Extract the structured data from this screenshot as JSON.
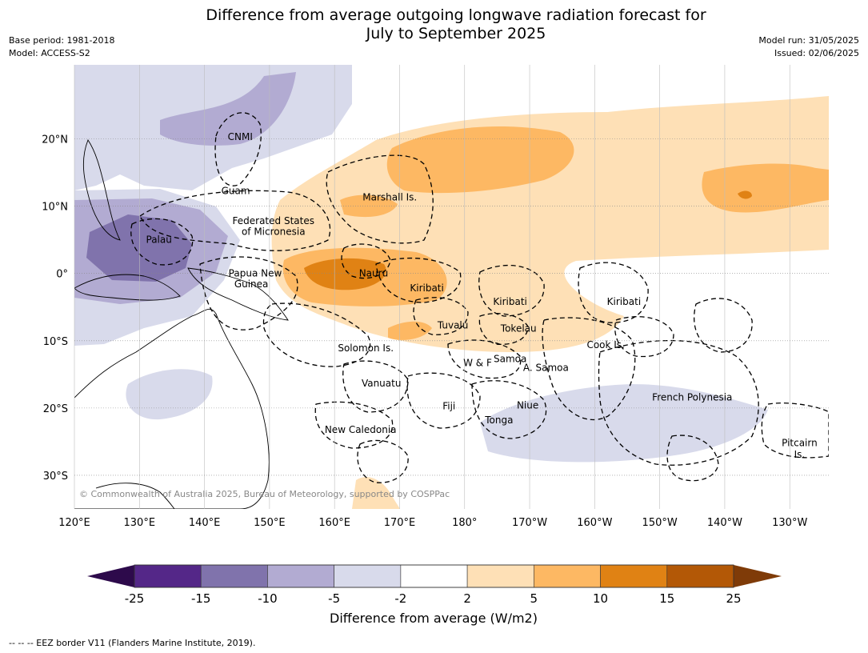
{
  "title": {
    "line1": "Difference from average outgoing longwave radiation forecast for",
    "line2": "July to September 2025"
  },
  "meta": {
    "base_period": "Base period: 1981-2018",
    "model": "Model: ACCESS-S2",
    "model_run": "Model run: 31/05/2025",
    "issued": "Issued: 02/06/2025"
  },
  "map": {
    "lon_range": [
      120,
      236
    ],
    "lat_range": [
      -35,
      31
    ],
    "lon_ticks": [
      {
        "value": 120,
        "label": "120°E"
      },
      {
        "value": 130,
        "label": "130°E"
      },
      {
        "value": 140,
        "label": "140°E"
      },
      {
        "value": 150,
        "label": "150°E"
      },
      {
        "value": 160,
        "label": "160°E"
      },
      {
        "value": 170,
        "label": "170°E"
      },
      {
        "value": 180,
        "label": "180°"
      },
      {
        "value": 190,
        "label": "170°W"
      },
      {
        "value": 200,
        "label": "160°W"
      },
      {
        "value": 210,
        "label": "150°W"
      },
      {
        "value": 220,
        "label": "140°W"
      },
      {
        "value": 230,
        "label": "130°W"
      }
    ],
    "lat_ticks": [
      {
        "value": 20,
        "label": "20°N"
      },
      {
        "value": 10,
        "label": "10°N"
      },
      {
        "value": 0,
        "label": "0°"
      },
      {
        "value": -10,
        "label": "10°S"
      },
      {
        "value": -20,
        "label": "20°S"
      },
      {
        "value": -30,
        "label": "30°S"
      }
    ],
    "places": [
      {
        "name": "CNMI",
        "lon": 145.5,
        "lat": 20.3
      },
      {
        "name": "Guam",
        "lon": 144.8,
        "lat": 12.3
      },
      {
        "name": "Marshall Is.",
        "lon": 168.5,
        "lat": 11.3
      },
      {
        "name": "Federated States",
        "lon": 150.6,
        "lat": 7.8
      },
      {
        "name": "of Micronesia",
        "lon": 150.6,
        "lat": 6.2
      },
      {
        "name": "Palau",
        "lon": 133.0,
        "lat": 5.0
      },
      {
        "name": "Papua New",
        "lon": 147.8,
        "lat": 0.0
      },
      {
        "name": "Guinea",
        "lon": 147.2,
        "lat": -1.6
      },
      {
        "name": "Nauru",
        "lon": 166.0,
        "lat": 0.0
      },
      {
        "name": "Kiribati",
        "lon": 174.2,
        "lat": -2.2
      },
      {
        "name": "Kiribati",
        "lon": 187.0,
        "lat": -4.2
      },
      {
        "name": "Kiribati",
        "lon": 204.5,
        "lat": -4.2
      },
      {
        "name": "Tuvalu",
        "lon": 178.2,
        "lat": -7.7
      },
      {
        "name": "Tokelau",
        "lon": 188.3,
        "lat": -8.2
      },
      {
        "name": "Solomon Is.",
        "lon": 164.8,
        "lat": -11.1
      },
      {
        "name": "Cook Is.",
        "lon": 201.7,
        "lat": -10.6
      },
      {
        "name": "W & F",
        "lon": 182.0,
        "lat": -13.3
      },
      {
        "name": "Samoa",
        "lon": 187.0,
        "lat": -12.7
      },
      {
        "name": "A. Samoa",
        "lon": 192.5,
        "lat": -14.0
      },
      {
        "name": "Vanuatu",
        "lon": 167.2,
        "lat": -16.3
      },
      {
        "name": "Fiji",
        "lon": 177.6,
        "lat": -19.7
      },
      {
        "name": "Niue",
        "lon": 189.7,
        "lat": -19.6
      },
      {
        "name": "Tonga",
        "lon": 185.3,
        "lat": -21.8
      },
      {
        "name": "New Caledonia",
        "lon": 164.0,
        "lat": -23.2
      },
      {
        "name": "French Polynesia",
        "lon": 215.0,
        "lat": -18.4
      },
      {
        "name": "Pitcairn",
        "lon": 231.5,
        "lat": -25.2
      },
      {
        "name": "Is.",
        "lon": 231.5,
        "lat": -26.9
      }
    ],
    "copyright": "© Commonwealth of Australia 2025, Bureau of Meteorology, supported by COSPPac"
  },
  "colorbar": {
    "title": "Difference from average (W/m2)",
    "below_color": "#2d0a4b",
    "above_color": "#7f3b08",
    "bins": [
      {
        "color": "#542788"
      },
      {
        "color": "#8073ac"
      },
      {
        "color": "#b2abd2"
      },
      {
        "color": "#d8daeb"
      },
      {
        "color": "#ffffff"
      },
      {
        "color": "#fee0b6"
      },
      {
        "color": "#fdb863"
      },
      {
        "color": "#e08214"
      },
      {
        "color": "#b35806"
      }
    ],
    "ticks": [
      "-25",
      "-15",
      "-10",
      "-5",
      "-2",
      "2",
      "5",
      "10",
      "15",
      "25"
    ]
  },
  "footnote": "--  --  -- EEZ border V11 (Flanders Marine Institute, 2019)."
}
